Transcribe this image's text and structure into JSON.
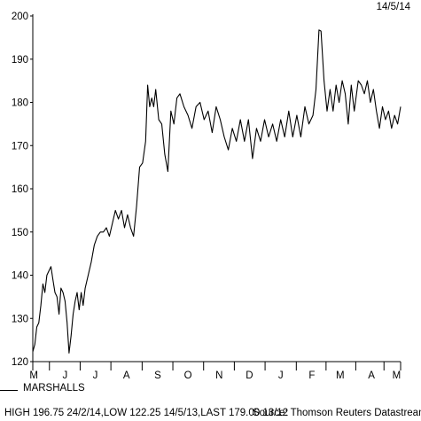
{
  "header": {
    "date": "14/5/14"
  },
  "legend": {
    "series_name": "MARSHALLS"
  },
  "footer": {
    "summary": "HIGH 196.75 24/2/14,LOW 122.25 14/5/13,LAST 179.00 13/12",
    "source": "Source: Thomson Reuters Datastream"
  },
  "chart_data": {
    "type": "line",
    "title": "",
    "xlabel": "",
    "ylabel": "",
    "x_range": [
      "2013-05-14",
      "2014-05-14"
    ],
    "ylim": [
      120,
      200
    ],
    "y_ticks": [
      120,
      130,
      140,
      150,
      160,
      170,
      180,
      190,
      200
    ],
    "x_ticks": [
      {
        "label": "M",
        "date": "2013-05-15"
      },
      {
        "label": "J",
        "date": "2013-06-15"
      },
      {
        "label": "J",
        "date": "2013-07-15"
      },
      {
        "label": "A",
        "date": "2013-08-15"
      },
      {
        "label": "S",
        "date": "2013-09-15"
      },
      {
        "label": "O",
        "date": "2013-10-15"
      },
      {
        "label": "N",
        "date": "2013-11-15"
      },
      {
        "label": "D",
        "date": "2013-12-15"
      },
      {
        "label": "J",
        "date": "2014-01-15"
      },
      {
        "label": "F",
        "date": "2014-02-15"
      },
      {
        "label": "M",
        "date": "2014-03-15"
      },
      {
        "label": "A",
        "date": "2014-04-15"
      },
      {
        "label": "M",
        "date": "2014-05-10"
      }
    ],
    "grid": false,
    "series": [
      {
        "name": "MARSHALLS",
        "color": "#000000",
        "points": [
          [
            "2013-05-14",
            122.3
          ],
          [
            "2013-05-16",
            124
          ],
          [
            "2013-05-18",
            128
          ],
          [
            "2013-05-20",
            129
          ],
          [
            "2013-05-22",
            133
          ],
          [
            "2013-05-24",
            138
          ],
          [
            "2013-05-26",
            136
          ],
          [
            "2013-05-28",
            140
          ],
          [
            "2013-05-30",
            141
          ],
          [
            "2013-06-01",
            142
          ],
          [
            "2013-06-03",
            139
          ],
          [
            "2013-06-05",
            136
          ],
          [
            "2013-06-07",
            135
          ],
          [
            "2013-06-09",
            131
          ],
          [
            "2013-06-11",
            137
          ],
          [
            "2013-06-13",
            136
          ],
          [
            "2013-06-15",
            134
          ],
          [
            "2013-06-17",
            129
          ],
          [
            "2013-06-19",
            122
          ],
          [
            "2013-06-21",
            126
          ],
          [
            "2013-06-23",
            131
          ],
          [
            "2013-06-25",
            134
          ],
          [
            "2013-06-27",
            136
          ],
          [
            "2013-06-29",
            132
          ],
          [
            "2013-07-01",
            136
          ],
          [
            "2013-07-03",
            133
          ],
          [
            "2013-07-05",
            137
          ],
          [
            "2013-07-08",
            140
          ],
          [
            "2013-07-11",
            143
          ],
          [
            "2013-07-14",
            147
          ],
          [
            "2013-07-17",
            149
          ],
          [
            "2013-07-20",
            150
          ],
          [
            "2013-07-23",
            150
          ],
          [
            "2013-07-26",
            151
          ],
          [
            "2013-07-29",
            149
          ],
          [
            "2013-08-01",
            152
          ],
          [
            "2013-08-04",
            155
          ],
          [
            "2013-08-07",
            153
          ],
          [
            "2013-08-10",
            155
          ],
          [
            "2013-08-13",
            151
          ],
          [
            "2013-08-16",
            154
          ],
          [
            "2013-08-19",
            151
          ],
          [
            "2013-08-22",
            149
          ],
          [
            "2013-08-25",
            156
          ],
          [
            "2013-08-28",
            165
          ],
          [
            "2013-08-31",
            166
          ],
          [
            "2013-09-03",
            171
          ],
          [
            "2013-09-05",
            184
          ],
          [
            "2013-09-07",
            179
          ],
          [
            "2013-09-09",
            181
          ],
          [
            "2013-09-11",
            179
          ],
          [
            "2013-09-13",
            183
          ],
          [
            "2013-09-16",
            176
          ],
          [
            "2013-09-19",
            175
          ],
          [
            "2013-09-22",
            168
          ],
          [
            "2013-09-25",
            164
          ],
          [
            "2013-09-28",
            178
          ],
          [
            "2013-10-01",
            175
          ],
          [
            "2013-10-04",
            181
          ],
          [
            "2013-10-07",
            182
          ],
          [
            "2013-10-11",
            179
          ],
          [
            "2013-10-15",
            177
          ],
          [
            "2013-10-19",
            174
          ],
          [
            "2013-10-23",
            179
          ],
          [
            "2013-10-27",
            180
          ],
          [
            "2013-10-31",
            176
          ],
          [
            "2013-11-04",
            178
          ],
          [
            "2013-11-08",
            173
          ],
          [
            "2013-11-12",
            179
          ],
          [
            "2013-11-16",
            176
          ],
          [
            "2013-11-20",
            172
          ],
          [
            "2013-11-24",
            169
          ],
          [
            "2013-11-28",
            174
          ],
          [
            "2013-12-02",
            171
          ],
          [
            "2013-12-06",
            176
          ],
          [
            "2013-12-10",
            171
          ],
          [
            "2013-12-14",
            176
          ],
          [
            "2013-12-18",
            167
          ],
          [
            "2013-12-22",
            174
          ],
          [
            "2013-12-26",
            171
          ],
          [
            "2013-12-30",
            176
          ],
          [
            "2014-01-03",
            172
          ],
          [
            "2014-01-07",
            175
          ],
          [
            "2014-01-11",
            171
          ],
          [
            "2014-01-15",
            176
          ],
          [
            "2014-01-19",
            172
          ],
          [
            "2014-01-23",
            178
          ],
          [
            "2014-01-27",
            172
          ],
          [
            "2014-01-31",
            177
          ],
          [
            "2014-02-04",
            172
          ],
          [
            "2014-02-08",
            179
          ],
          [
            "2014-02-12",
            175
          ],
          [
            "2014-02-16",
            177
          ],
          [
            "2014-02-19",
            183
          ],
          [
            "2014-02-22",
            196.75
          ],
          [
            "2014-02-24",
            196.5
          ],
          [
            "2014-02-27",
            185
          ],
          [
            "2014-03-02",
            178
          ],
          [
            "2014-03-05",
            183
          ],
          [
            "2014-03-08",
            178
          ],
          [
            "2014-03-11",
            184
          ],
          [
            "2014-03-14",
            180
          ],
          [
            "2014-03-17",
            185
          ],
          [
            "2014-03-20",
            182
          ],
          [
            "2014-03-23",
            175
          ],
          [
            "2014-03-26",
            184
          ],
          [
            "2014-03-29",
            178
          ],
          [
            "2014-04-02",
            185
          ],
          [
            "2014-04-05",
            184
          ],
          [
            "2014-04-08",
            182
          ],
          [
            "2014-04-11",
            185
          ],
          [
            "2014-04-14",
            180
          ],
          [
            "2014-04-17",
            183
          ],
          [
            "2014-04-20",
            178
          ],
          [
            "2014-04-23",
            174
          ],
          [
            "2014-04-26",
            179
          ],
          [
            "2014-04-29",
            176
          ],
          [
            "2014-05-02",
            178
          ],
          [
            "2014-05-05",
            174
          ],
          [
            "2014-05-08",
            177
          ],
          [
            "2014-05-11",
            175
          ],
          [
            "2014-05-14",
            179
          ]
        ]
      }
    ]
  }
}
